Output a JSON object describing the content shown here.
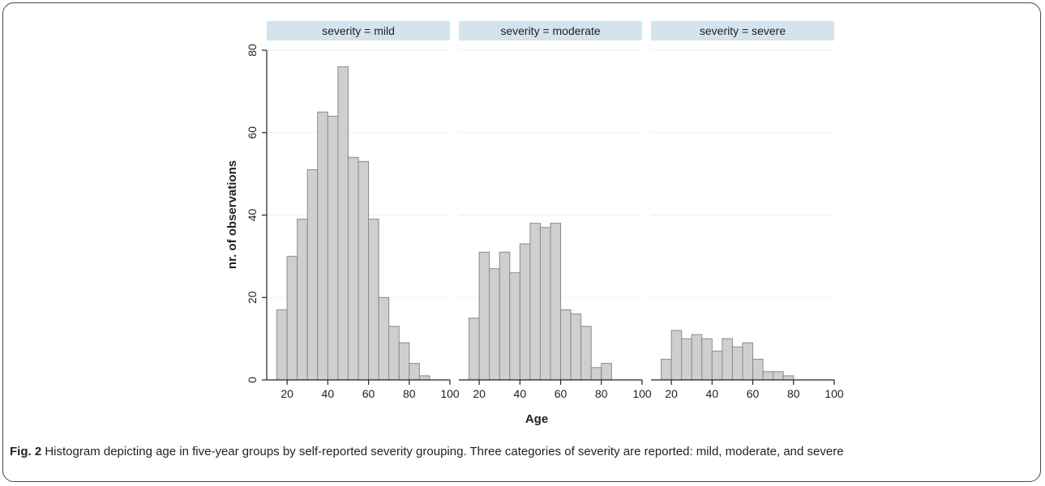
{
  "figure": {
    "caption_label": "Fig. 2",
    "caption_text": "Histogram depicting age in five-year groups by self-reported severity grouping. Three categories of severity are reported: mild, moderate, and severe"
  },
  "colors": {
    "bar_fill": "#cfcfcf",
    "bar_stroke": "#8a8a8a",
    "panel_header": "#d4e3ec",
    "gridline": "#e8f0f4",
    "axis": "#222222"
  },
  "chart_data": {
    "type": "bar",
    "ylabel": "nr. of observations",
    "xlabel": "Age",
    "ylim": [
      0,
      80
    ],
    "xlim": [
      10,
      100
    ],
    "y_ticks": [
      0,
      20,
      40,
      60,
      80
    ],
    "x_ticks": [
      20,
      40,
      60,
      80,
      100
    ],
    "bin_width": 5,
    "grid": true,
    "panels": [
      {
        "title": "severity = mild",
        "bins": [
          {
            "x0": 15,
            "value": 17
          },
          {
            "x0": 20,
            "value": 30
          },
          {
            "x0": 25,
            "value": 39
          },
          {
            "x0": 30,
            "value": 51
          },
          {
            "x0": 35,
            "value": 65
          },
          {
            "x0": 40,
            "value": 64
          },
          {
            "x0": 45,
            "value": 76
          },
          {
            "x0": 50,
            "value": 54
          },
          {
            "x0": 55,
            "value": 53
          },
          {
            "x0": 60,
            "value": 39
          },
          {
            "x0": 65,
            "value": 20
          },
          {
            "x0": 70,
            "value": 13
          },
          {
            "x0": 75,
            "value": 9
          },
          {
            "x0": 80,
            "value": 4
          },
          {
            "x0": 85,
            "value": 1
          }
        ]
      },
      {
        "title": "severity = moderate",
        "bins": [
          {
            "x0": 15,
            "value": 15
          },
          {
            "x0": 20,
            "value": 31
          },
          {
            "x0": 25,
            "value": 27
          },
          {
            "x0": 30,
            "value": 31
          },
          {
            "x0": 35,
            "value": 26
          },
          {
            "x0": 40,
            "value": 33
          },
          {
            "x0": 45,
            "value": 38
          },
          {
            "x0": 50,
            "value": 37
          },
          {
            "x0": 55,
            "value": 38
          },
          {
            "x0": 60,
            "value": 17
          },
          {
            "x0": 65,
            "value": 16
          },
          {
            "x0": 70,
            "value": 13
          },
          {
            "x0": 75,
            "value": 3
          },
          {
            "x0": 80,
            "value": 4
          }
        ]
      },
      {
        "title": "severity = severe",
        "bins": [
          {
            "x0": 15,
            "value": 5
          },
          {
            "x0": 20,
            "value": 12
          },
          {
            "x0": 25,
            "value": 10
          },
          {
            "x0": 30,
            "value": 11
          },
          {
            "x0": 35,
            "value": 10
          },
          {
            "x0": 40,
            "value": 7
          },
          {
            "x0": 45,
            "value": 10
          },
          {
            "x0": 50,
            "value": 8
          },
          {
            "x0": 55,
            "value": 9
          },
          {
            "x0": 60,
            "value": 5
          },
          {
            "x0": 65,
            "value": 2
          },
          {
            "x0": 70,
            "value": 2
          },
          {
            "x0": 75,
            "value": 1
          }
        ]
      }
    ]
  }
}
